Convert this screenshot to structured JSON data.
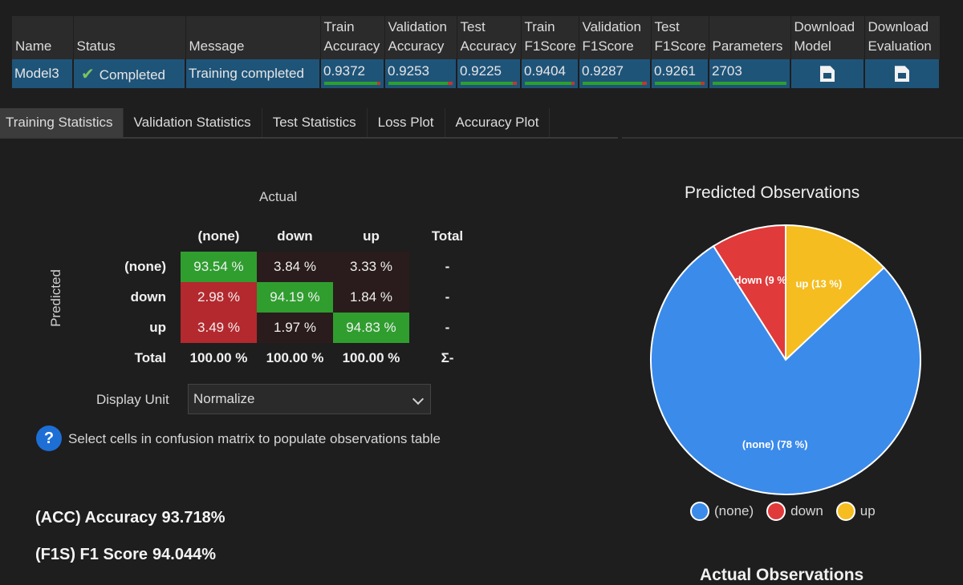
{
  "models_table": {
    "headers": [
      {
        "line1": "",
        "line2": "Name"
      },
      {
        "line1": "",
        "line2": "Status"
      },
      {
        "line1": "",
        "line2": "Message"
      },
      {
        "line1": "Train",
        "line2": "Accuracy"
      },
      {
        "line1": "Validation",
        "line2": "Accuracy"
      },
      {
        "line1": "Test",
        "line2": "Accuracy"
      },
      {
        "line1": "Train",
        "line2": "F1Score"
      },
      {
        "line1": "Validation",
        "line2": "F1Score"
      },
      {
        "line1": "Test",
        "line2": "F1Score"
      },
      {
        "line1": "",
        "line2": "Parameters"
      },
      {
        "line1": "Download",
        "line2": "Model"
      },
      {
        "line1": "Download",
        "line2": "Evaluation"
      }
    ],
    "row": {
      "name": "Model3",
      "status": "Completed",
      "message": "Training completed",
      "metrics": [
        {
          "value": "0.9372",
          "fill": 0.9372
        },
        {
          "value": "0.9253",
          "fill": 0.9253
        },
        {
          "value": "0.9225",
          "fill": 0.9225
        },
        {
          "value": "0.9404",
          "fill": 0.9404
        },
        {
          "value": "0.9287",
          "fill": 0.9287
        },
        {
          "value": "0.9261",
          "fill": 0.9261
        },
        {
          "value": "2703",
          "fill": 1.0
        }
      ],
      "download_model_icon": "file-download-icon",
      "download_evaluation_icon": "file-download-icon"
    },
    "colors": {
      "row_bg": "#1f5479",
      "bar_good": "#2ca02c",
      "bar_bad": "#c0392b"
    }
  },
  "tabs": [
    {
      "label": "Training Statistics",
      "active": true
    },
    {
      "label": "Validation Statistics",
      "active": false
    },
    {
      "label": "Test Statistics",
      "active": false
    },
    {
      "label": "Loss Plot",
      "active": false
    },
    {
      "label": "Accuracy Plot",
      "active": false
    }
  ],
  "confusion_matrix": {
    "actual_label": "Actual",
    "predicted_label": "Predicted",
    "columns": [
      "(none)",
      "down",
      "up",
      "Total"
    ],
    "rows": [
      {
        "label": "(none)",
        "cells": [
          "93.54 %",
          "3.84 %",
          "3.33 %"
        ],
        "total": "-"
      },
      {
        "label": "down",
        "cells": [
          "2.98 %",
          "94.19 %",
          "1.84 %"
        ],
        "total": "-"
      },
      {
        "label": "up",
        "cells": [
          "3.49 %",
          "1.97 %",
          "94.83 %"
        ],
        "total": "-"
      }
    ],
    "totals_row": {
      "label": "Total",
      "cells": [
        "100.00 %",
        "100.00 %",
        "100.00 %"
      ],
      "total": "Σ-"
    },
    "colors": {
      "diagonal": "#2f9e2f",
      "high_error": "#b3292e",
      "low_error": "#2a1c1c"
    }
  },
  "display_unit": {
    "label": "Display Unit",
    "value": "Normalize"
  },
  "help": {
    "text": "Select cells in confusion matrix to populate observations table"
  },
  "stats": [
    {
      "label": "(ACC) Accuracy",
      "value": "93.718%"
    },
    {
      "label": "(F1S) F1 Score",
      "value": "94.044%"
    }
  ],
  "chart_data": {
    "type": "pie",
    "title": "Predicted Observations",
    "categories": [
      "(none)",
      "down",
      "up"
    ],
    "values": [
      78,
      9,
      13
    ],
    "slice_labels": [
      "(none) (78 %)",
      "down (9 %)",
      "up (13 %)"
    ],
    "colors": [
      "#3b8beb",
      "#e03a3a",
      "#f5bd1f"
    ],
    "legend_placement": "bottom"
  },
  "next_section_title": "Actual Observations"
}
